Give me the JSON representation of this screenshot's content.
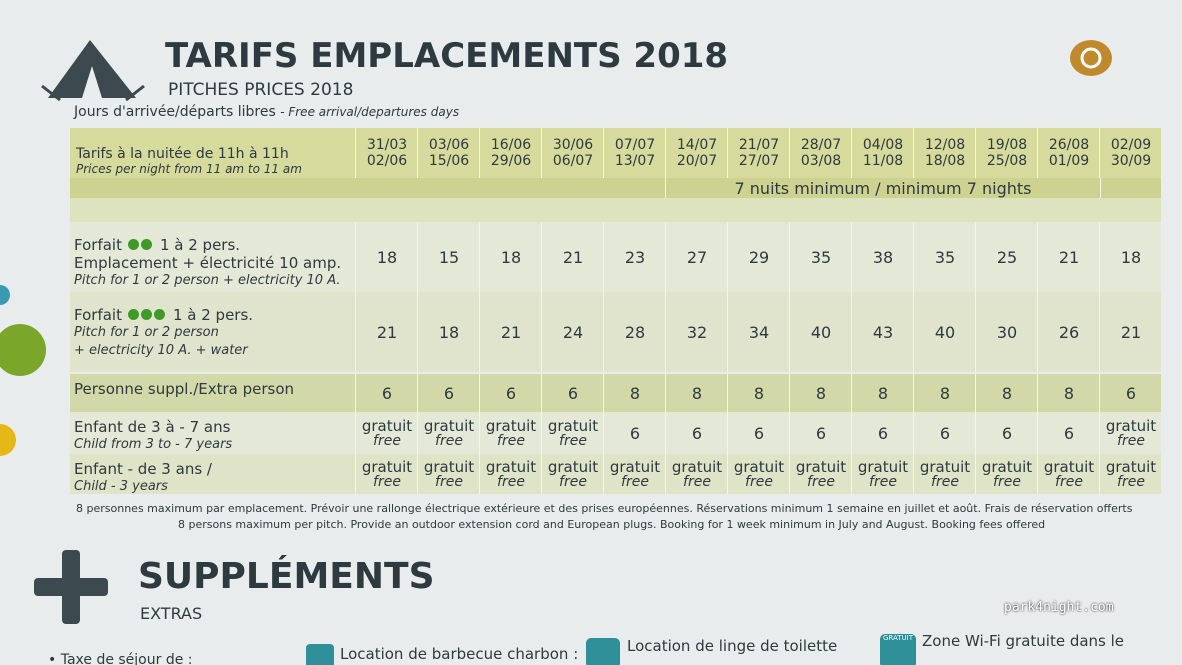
{
  "header": {
    "title": "TARIFS EMPLACEMENTS 2018",
    "subtitle": "PITCHES PRICES 2018",
    "days_fr": "Jours d'arrivée/départs libres",
    "days_en": "- Free arrival/departures days"
  },
  "table": {
    "header_fr": "Tarifs à la nuitée de 11h à 11h",
    "header_en": "Prices per night from 11 am to 11 am",
    "periods": [
      [
        "31/03",
        "02/06"
      ],
      [
        "03/06",
        "15/06"
      ],
      [
        "16/06",
        "29/06"
      ],
      [
        "30/06",
        "06/07"
      ],
      [
        "07/07",
        "13/07"
      ],
      [
        "14/07",
        "20/07"
      ],
      [
        "21/07",
        "27/07"
      ],
      [
        "28/07",
        "03/08"
      ],
      [
        "04/08",
        "11/08"
      ],
      [
        "12/08",
        "18/08"
      ],
      [
        "19/08",
        "25/08"
      ],
      [
        "26/08",
        "01/09"
      ],
      [
        "02/09",
        "30/09"
      ]
    ],
    "minimum": "7 nuits minimum / minimum 7 nights",
    "rows": [
      {
        "forfait": "Forfait",
        "clovers": 2,
        "pers": "1 à 2 pers.",
        "lines": [
          "Emplacement + électricité 10 amp.",
          "Pitch for 1 or 2 person + electricity 10 A."
        ],
        "values": [
          18,
          15,
          18,
          21,
          23,
          27,
          29,
          35,
          38,
          35,
          25,
          21,
          18
        ]
      },
      {
        "forfait": "Forfait",
        "clovers": 3,
        "pers": "1 à 2 pers.",
        "lines": [
          "Pitch for 1 or 2 person",
          "+ electricity 10 A. + water"
        ],
        "values": [
          21,
          18,
          21,
          24,
          28,
          32,
          34,
          40,
          43,
          40,
          30,
          26,
          21
        ]
      },
      {
        "lines": [
          "Personne suppl./Extra person"
        ],
        "values": [
          6,
          6,
          6,
          6,
          8,
          8,
          8,
          8,
          8,
          8,
          8,
          8,
          6
        ]
      },
      {
        "lines": [
          "Enfant de 3 à - 7 ans",
          "Child from 3 to - 7 years"
        ],
        "values": [
          {
            "fr": "gratuit",
            "en": "free"
          },
          {
            "fr": "gratuit",
            "en": "free"
          },
          {
            "fr": "gratuit",
            "en": "free"
          },
          {
            "fr": "gratuit",
            "en": "free"
          },
          6,
          6,
          6,
          6,
          6,
          6,
          6,
          6,
          {
            "fr": "gratuit",
            "en": "free"
          }
        ]
      },
      {
        "lines": [
          "Enfant - de 3 ans /",
          "Child - 3 years"
        ],
        "values": [
          {
            "fr": "gratuit",
            "en": "free"
          },
          {
            "fr": "gratuit",
            "en": "free"
          },
          {
            "fr": "gratuit",
            "en": "free"
          },
          {
            "fr": "gratuit",
            "en": "free"
          },
          {
            "fr": "gratuit",
            "en": "free"
          },
          {
            "fr": "gratuit",
            "en": "free"
          },
          {
            "fr": "gratuit",
            "en": "free"
          },
          {
            "fr": "gratuit",
            "en": "free"
          },
          {
            "fr": "gratuit",
            "en": "free"
          },
          {
            "fr": "gratuit",
            "en": "free"
          },
          {
            "fr": "gratuit",
            "en": "free"
          },
          {
            "fr": "gratuit",
            "en": "free"
          },
          {
            "fr": "gratuit",
            "en": "free"
          }
        ]
      }
    ],
    "note_fr": "8 personnes maximum par emplacement. Prévoir une rallonge électrique extérieure et des prises européennes. Réservations minimum 1 semaine en juillet et août. Frais de réservation offerts",
    "note_en": "8 persons maximum per pitch. Provide an outdoor extension cord and European plugs. Booking for 1 week minimum in July and August. Booking fees offered"
  },
  "extras": {
    "title": "SUPPLÉMENTS",
    "subtitle": "EXTRAS",
    "items": [
      "• Taxe de séjour de :",
      "Location de barbecue charbon :",
      "Location de linge de toilette",
      "Zone Wi-Fi gratuite dans le"
    ],
    "badge": "GRATUIT"
  },
  "watermark": "park4night.com"
}
